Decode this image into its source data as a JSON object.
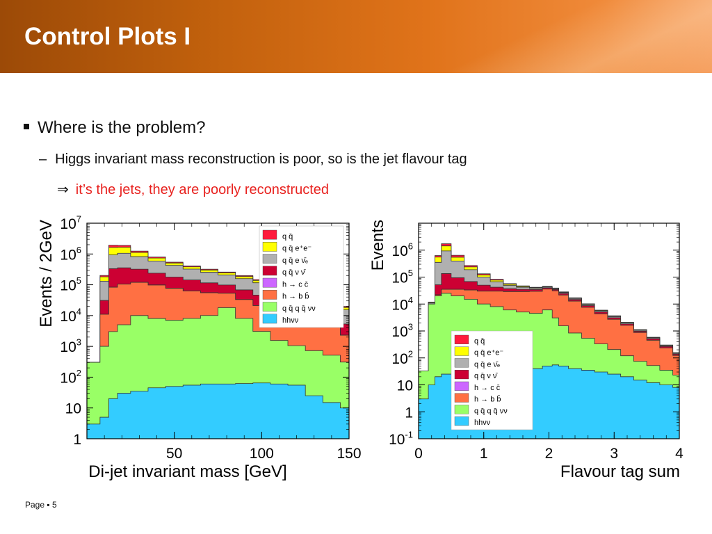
{
  "slide": {
    "title": "Control Plots I",
    "bullet1": "Where is the problem?",
    "bullet2_marker": "–",
    "bullet2": "Higgs invariant mass reconstruction is poor, so is the jet flavour tag",
    "bullet3_marker": "⇒",
    "bullet3": "it’s the jets, they are poorly reconstructed",
    "footer": "Page ▪ 5"
  },
  "colors": {
    "title_bar": "#c2610d",
    "highlight_text": "#e8221f",
    "qq": "#ff1a3c",
    "qqee": "#ffff00",
    "qqev": "#b0b0b0",
    "qqvv": "#cc0033",
    "hcc": "#cc66ff",
    "hbb": "#ff7043",
    "qqqqvv": "#99ff66",
    "hhvv": "#33ccff"
  },
  "chart_data": [
    {
      "type": "area",
      "stacked": true,
      "log_y": true,
      "xlabel": "Di-jet invariant mass [GeV]",
      "ylabel": "Events / 2GeV",
      "xlim": [
        0,
        150
      ],
      "ylim": [
        1,
        10000000
      ],
      "x_ticks": [
        50,
        100,
        150
      ],
      "y_ticks": [
        "1",
        "10",
        "10^2",
        "10^3",
        "10^4",
        "10^5",
        "10^6",
        "10^7"
      ],
      "legend_position": "top-right",
      "x": [
        5,
        10,
        15,
        20,
        30,
        40,
        50,
        60,
        70,
        80,
        90,
        100,
        110,
        120,
        130,
        140,
        150
      ],
      "series": [
        {
          "name": "hhνν",
          "key": "hhvv",
          "color": "#33ccff",
          "values": [
            3,
            5,
            20,
            30,
            35,
            45,
            50,
            55,
            60,
            60,
            62,
            65,
            60,
            55,
            25,
            15,
            10
          ]
        },
        {
          "name": "q q̄ q q̄ νν",
          "key": "qqqqvv",
          "color": "#99ff66",
          "values": [
            300,
            1000,
            3000,
            5000,
            10000,
            8000,
            7000,
            8000,
            10000,
            18000,
            8000,
            3000,
            1500,
            1000,
            700,
            500,
            300
          ]
        },
        {
          "name": "h → b b̄",
          "key": "hbb",
          "color": "#ff7043",
          "values": [
            0,
            10000,
            80000,
            100000,
            110000,
            90000,
            70000,
            55000,
            45000,
            35000,
            25000,
            18000,
            12000,
            8000,
            6000,
            4000,
            2000
          ]
        },
        {
          "name": "h → c c̄",
          "key": "hcc",
          "color": "#cc66ff",
          "values": [
            0,
            50,
            400,
            600,
            700,
            600,
            500,
            400,
            300,
            250,
            200,
            150,
            100,
            80,
            60,
            40,
            20
          ]
        },
        {
          "name": "q q̄ ν ν̄",
          "key": "qqvv",
          "color": "#cc0033",
          "values": [
            0,
            20000,
            250000,
            250000,
            200000,
            140000,
            100000,
            80000,
            60000,
            45000,
            35000,
            25000,
            18000,
            12000,
            9000,
            6000,
            3000
          ]
        },
        {
          "name": "q q̄ e ν̄ₑ",
          "key": "qqev",
          "color": "#b0b0b0",
          "values": [
            0,
            100000,
            600000,
            700000,
            500000,
            350000,
            250000,
            180000,
            140000,
            110000,
            90000,
            70000,
            55000,
            40000,
            30000,
            20000,
            10000
          ]
        },
        {
          "name": "q q̄ e⁺e⁻",
          "key": "qqee",
          "color": "#ffff00",
          "values": [
            0,
            50000,
            700000,
            600000,
            300000,
            150000,
            80000,
            60000,
            45000,
            35000,
            28000,
            22000,
            16000,
            12000,
            9000,
            6000,
            3000
          ]
        },
        {
          "name": "q q̄",
          "key": "qq",
          "color": "#ff1a3c",
          "values": [
            0,
            20000,
            300000,
            250000,
            120000,
            60000,
            35000,
            25000,
            20000,
            15000,
            12000,
            9000,
            7000,
            5000,
            3500,
            2500,
            1500
          ]
        }
      ]
    },
    {
      "type": "area",
      "stacked": true,
      "log_y": true,
      "xlabel": "Flavour tag sum",
      "ylabel": "Events",
      "xlim": [
        0,
        4
      ],
      "ylim": [
        0.1,
        10000000
      ],
      "x_ticks": [
        0,
        1,
        2,
        3,
        4
      ],
      "y_ticks": [
        "10^-1",
        "1",
        "10",
        "10^2",
        "10^3",
        "10^4",
        "10^5",
        "10^6"
      ],
      "legend_position": "bottom-center",
      "x": [
        0.1,
        0.2,
        0.3,
        0.4,
        0.6,
        0.8,
        1.0,
        1.2,
        1.4,
        1.6,
        1.8,
        2.0,
        2.1,
        2.2,
        2.4,
        2.6,
        2.8,
        3.0,
        3.2,
        3.4,
        3.6,
        3.8,
        4.0
      ],
      "series": [
        {
          "name": "hhνν",
          "key": "hhvv",
          "color": "#33ccff",
          "values": [
            3,
            10,
            20,
            25,
            25,
            30,
            35,
            40,
            40,
            40,
            40,
            50,
            55,
            50,
            40,
            35,
            30,
            25,
            20,
            15,
            12,
            10,
            8
          ]
        },
        {
          "name": "q q̄ q q̄ νν",
          "key": "qqqqvv",
          "color": "#99ff66",
          "values": [
            30,
            10000,
            20000,
            25000,
            20000,
            15000,
            10000,
            8000,
            6000,
            5000,
            4500,
            6000,
            3000,
            1500,
            800,
            500,
            300,
            180,
            100,
            60,
            40,
            25,
            15
          ]
        },
        {
          "name": "h → b b̄",
          "key": "hbb",
          "color": "#ff7043",
          "values": [
            0,
            0,
            2000,
            10000,
            15000,
            18000,
            20000,
            22000,
            23000,
            24000,
            25000,
            30000,
            28000,
            20000,
            12000,
            7000,
            4000,
            2500,
            1500,
            800,
            400,
            200,
            100
          ]
        },
        {
          "name": "h → c c̄",
          "key": "hcc",
          "color": "#cc66ff",
          "values": [
            0,
            0,
            50,
            100,
            100,
            90,
            80,
            70,
            60,
            50,
            40,
            30,
            25,
            20,
            15,
            10,
            8,
            6,
            4,
            3,
            2,
            1,
            1
          ]
        },
        {
          "name": "q q̄ ν ν̄",
          "key": "qqvv",
          "color": "#cc0033",
          "values": [
            0,
            100,
            30000,
            100000,
            60000,
            35000,
            20000,
            12000,
            8000,
            6000,
            5000,
            4000,
            3500,
            3000,
            2000,
            1200,
            700,
            400,
            200,
            100,
            60,
            30,
            15
          ]
        },
        {
          "name": "q q̄ e ν̄ₑ",
          "key": "qqev",
          "color": "#b0b0b0",
          "values": [
            0,
            1000,
            300000,
            800000,
            300000,
            120000,
            50000,
            25000,
            12000,
            7000,
            4000,
            3000,
            2500,
            2000,
            1200,
            800,
            500,
            300,
            150,
            80,
            40,
            20,
            10
          ]
        },
        {
          "name": "q q̄ e⁺e⁻",
          "key": "qqee",
          "color": "#ffff00",
          "values": [
            0,
            500,
            200000,
            500000,
            150000,
            50000,
            20000,
            10000,
            5000,
            3000,
            2000,
            1500,
            1200,
            1000,
            600,
            400,
            250,
            150,
            80,
            40,
            20,
            10,
            5
          ]
        },
        {
          "name": "q q̄",
          "key": "qq",
          "color": "#ff1a3c",
          "values": [
            0,
            200,
            80000,
            300000,
            100000,
            30000,
            12000,
            6000,
            3000,
            2000,
            1200,
            1000,
            800,
            700,
            400,
            250,
            150,
            90,
            50,
            25,
            12,
            6,
            3
          ]
        }
      ]
    }
  ]
}
